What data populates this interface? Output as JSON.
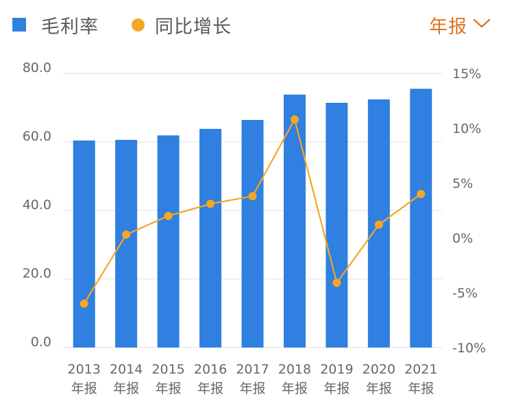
{
  "legend": {
    "bar_label": "毛利率",
    "line_label": "同比增长"
  },
  "period_select": {
    "label": "年报"
  },
  "colors": {
    "bar": "#2f80e0",
    "line": "#f5a623",
    "select": "#e0731e",
    "grid": "#e6e6e6",
    "tick": "#666666"
  },
  "icons": {
    "legend_bar": "square-icon",
    "legend_line": "dot-icon",
    "period": "chevron-down-icon"
  },
  "chart_data": {
    "type": "bar",
    "categories": [
      [
        "2013",
        "年报"
      ],
      [
        "2014",
        "年报"
      ],
      [
        "2015",
        "年报"
      ],
      [
        "2016",
        "年报"
      ],
      [
        "2017",
        "年报"
      ],
      [
        "2018",
        "年报"
      ],
      [
        "2019",
        "年报"
      ],
      [
        "2020",
        "年报"
      ],
      [
        "2021",
        "年报"
      ]
    ],
    "series": [
      {
        "name": "毛利率",
        "type": "bar",
        "axis": "left",
        "values": [
          60.4,
          60.6,
          61.9,
          63.8,
          66.4,
          73.8,
          71.4,
          72.4,
          75.5
        ]
      },
      {
        "name": "同比增长",
        "type": "line",
        "axis": "right",
        "values": [
          -6.0,
          0.3,
          2.0,
          3.1,
          3.8,
          10.8,
          -4.1,
          1.2,
          4.0
        ]
      }
    ],
    "y_left": {
      "ylim": [
        0,
        80
      ],
      "ticks": [
        "0.0",
        "20.0",
        "40.0",
        "60.0",
        "80.0"
      ]
    },
    "y_right": {
      "ylim": [
        -10,
        15
      ],
      "ticks": [
        "-10%",
        "-5%",
        "0%",
        "5%",
        "10%",
        "15%"
      ]
    },
    "grid": true,
    "legend_position": "top-left"
  }
}
